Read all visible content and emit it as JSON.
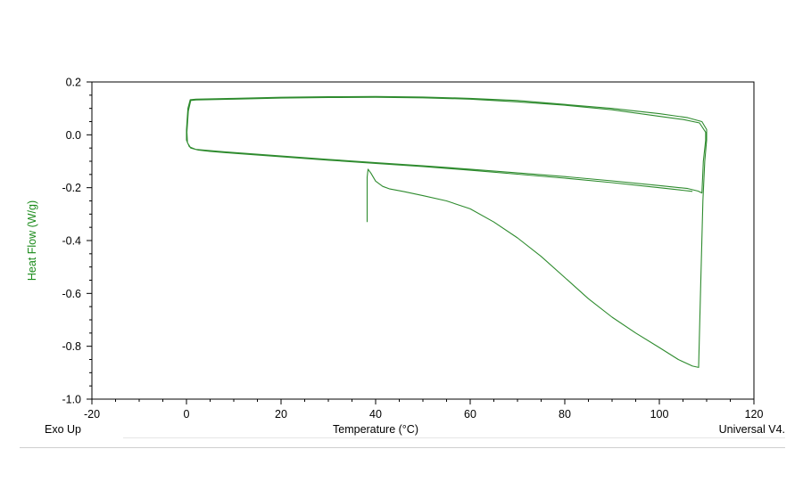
{
  "chart_data": {
    "type": "line",
    "title": "",
    "xlabel": "Temperature (°C)",
    "ylabel": "Heat Flow (W/g)",
    "xlim": [
      -20,
      120
    ],
    "ylim": [
      -1.0,
      0.2
    ],
    "x_ticks": [
      "-20",
      "0",
      "20",
      "40",
      "60",
      "80",
      "100",
      "120"
    ],
    "y_ticks": [
      "0.2",
      "0.0",
      "-0.2",
      "-0.4",
      "-0.6",
      "-0.8",
      "-1.0"
    ],
    "grid": false,
    "footer_left": "Exo Up",
    "footer_right": "Universal V4.",
    "line_color": "#2e8b2e",
    "label_color": "#1a8a1a",
    "series": [
      {
        "points": [
          [
            38.2,
            -0.33
          ],
          [
            38.2,
            -0.16
          ],
          [
            38.4,
            -0.13
          ],
          [
            39.0,
            -0.145
          ],
          [
            40.0,
            -0.175
          ],
          [
            41.5,
            -0.195
          ],
          [
            43.0,
            -0.205
          ],
          [
            46.0,
            -0.215
          ],
          [
            50.0,
            -0.23
          ],
          [
            55.0,
            -0.25
          ],
          [
            60.0,
            -0.28
          ],
          [
            65.0,
            -0.33
          ],
          [
            70.0,
            -0.39
          ],
          [
            75.0,
            -0.46
          ],
          [
            80.0,
            -0.54
          ],
          [
            85.0,
            -0.62
          ],
          [
            90.0,
            -0.69
          ],
          [
            95.0,
            -0.75
          ],
          [
            100.0,
            -0.805
          ],
          [
            104.0,
            -0.85
          ],
          [
            107.0,
            -0.875
          ],
          [
            108.3,
            -0.88
          ],
          [
            108.7,
            -0.6
          ],
          [
            109.2,
            -0.25
          ],
          [
            109.6,
            -0.1
          ],
          [
            110.0,
            -0.02
          ],
          [
            110.0,
            0.02
          ],
          [
            109.0,
            0.05
          ],
          [
            106.0,
            0.065
          ],
          [
            100.0,
            0.08
          ],
          [
            90.0,
            0.1
          ],
          [
            80.0,
            0.115
          ],
          [
            70.0,
            0.13
          ],
          [
            60.0,
            0.138
          ],
          [
            50.0,
            0.143
          ],
          [
            40.0,
            0.145
          ],
          [
            30.0,
            0.144
          ],
          [
            20.0,
            0.142
          ],
          [
            10.0,
            0.138
          ],
          [
            2.0,
            0.135
          ],
          [
            0.8,
            0.133
          ],
          [
            0.3,
            0.1
          ],
          [
            0.0,
            0.02
          ],
          [
            0.0,
            -0.02
          ],
          [
            0.6,
            -0.045
          ],
          [
            2.0,
            -0.055
          ],
          [
            5.0,
            -0.06
          ],
          [
            10.0,
            -0.067
          ],
          [
            20.0,
            -0.08
          ],
          [
            30.0,
            -0.093
          ],
          [
            40.0,
            -0.105
          ],
          [
            50.0,
            -0.117
          ],
          [
            60.0,
            -0.13
          ],
          [
            70.0,
            -0.144
          ],
          [
            80.0,
            -0.158
          ],
          [
            90.0,
            -0.174
          ],
          [
            100.0,
            -0.192
          ],
          [
            106.0,
            -0.203
          ],
          [
            108.2,
            -0.213
          ],
          [
            109.0,
            -0.22
          ],
          [
            109.3,
            -0.1
          ],
          [
            109.8,
            -0.02
          ],
          [
            109.8,
            0.01
          ],
          [
            108.5,
            0.045
          ],
          [
            105.0,
            0.058
          ],
          [
            100.0,
            0.07
          ],
          [
            90.0,
            0.095
          ],
          [
            80.0,
            0.112
          ],
          [
            70.0,
            0.125
          ],
          [
            60.0,
            0.135
          ],
          [
            50.0,
            0.14
          ],
          [
            40.0,
            0.142
          ],
          [
            30.0,
            0.141
          ],
          [
            20.0,
            0.139
          ],
          [
            10.0,
            0.135
          ],
          [
            2.0,
            0.132
          ],
          [
            0.9,
            0.13
          ],
          [
            0.4,
            0.09
          ],
          [
            0.1,
            0.01
          ],
          [
            0.2,
            -0.03
          ],
          [
            0.9,
            -0.05
          ],
          [
            2.5,
            -0.058
          ],
          [
            5.0,
            -0.063
          ],
          [
            10.0,
            -0.07
          ],
          [
            20.0,
            -0.083
          ],
          [
            30.0,
            -0.096
          ],
          [
            40.0,
            -0.108
          ],
          [
            50.0,
            -0.12
          ],
          [
            60.0,
            -0.134
          ],
          [
            70.0,
            -0.149
          ],
          [
            80.0,
            -0.164
          ],
          [
            90.0,
            -0.181
          ],
          [
            100.0,
            -0.2
          ],
          [
            107.0,
            -0.214
          ]
        ]
      }
    ]
  }
}
